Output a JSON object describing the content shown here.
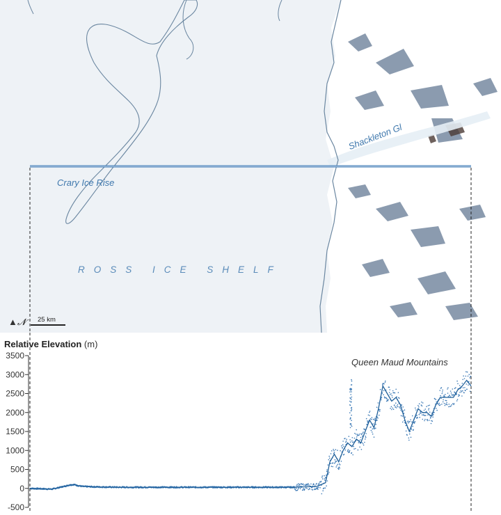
{
  "map": {
    "labels": {
      "crary": "Crary Ice Rise",
      "ross": "ROSS ICE SHELF",
      "shackleton": "Shackleton Gl"
    },
    "north_symbol": "▲𝓝",
    "scale_label": "25 km",
    "colors": {
      "ice_shelf": "#eef2f6",
      "profile_line": "#3a78b5",
      "outline": "#6a86a0"
    }
  },
  "chart": {
    "title": "Relative Elevation",
    "unit": "(m)",
    "annotation": "Queen Maud Mountains"
  },
  "chart_data": {
    "type": "scatter",
    "xlabel": "",
    "ylabel": "Relative Elevation (m)",
    "ylim": [
      -500,
      3500
    ],
    "yticks": [
      "3500",
      "3000",
      "2500",
      "2000",
      "1500",
      "1000",
      "500",
      "0",
      "-500"
    ],
    "xlim": [
      0,
      100
    ],
    "grid": false,
    "series": [
      {
        "x": [
          0,
          5,
          8,
          9,
          10,
          11,
          12,
          15,
          20,
          30,
          40,
          50,
          55,
          60,
          62,
          65,
          67,
          68,
          69,
          70,
          71,
          72,
          73,
          74,
          75,
          76,
          77,
          78,
          79,
          80,
          81,
          82,
          83,
          84,
          85,
          86,
          87,
          88,
          89,
          90,
          91,
          92,
          93,
          94,
          95,
          96,
          97,
          98,
          99,
          100
        ],
        "y": [
          0,
          -20,
          60,
          90,
          100,
          70,
          50,
          40,
          30,
          30,
          30,
          30,
          30,
          30,
          40,
          50,
          150,
          700,
          900,
          700,
          1000,
          1200,
          1100,
          1300,
          1200,
          1500,
          1800,
          1600,
          2100,
          2700,
          2500,
          2300,
          2400,
          2200,
          1800,
          1500,
          1800,
          2100,
          2000,
          2000,
          1900,
          2200,
          2400,
          2400,
          2400,
          2400,
          2600,
          2700,
          2850,
          2700
        ]
      }
    ]
  }
}
